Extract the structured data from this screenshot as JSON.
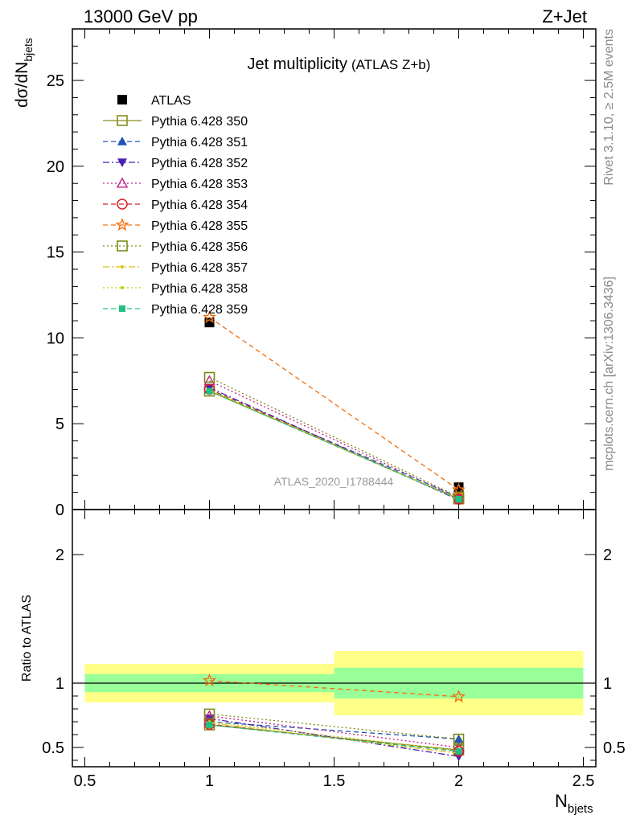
{
  "header": {
    "left": "13000 GeV pp",
    "right": "Z+Jet"
  },
  "side_text": {
    "rivet": "Rivet 3.1.10, ≥ 2.5M events",
    "mcplots": "mcplots.cern.ch [arXiv:1306.3436]"
  },
  "chart_data": [
    {
      "type": "scatter",
      "panel": "main",
      "title": "Jet multiplicity",
      "subtitle": "(ATLAS Z+b)",
      "analysis_label": "ATLAS_2020_I1788444",
      "xlabel": "N",
      "xlabel_sub": "bjets",
      "ylabel": "dσ/dN",
      "ylabel_sub": "bjets",
      "xlim": [
        0.45,
        2.55
      ],
      "ylim": [
        0,
        28
      ],
      "x_ticks": [
        0.5,
        1,
        1.5,
        2,
        2.5
      ],
      "x_tick_labels": [
        "0.5",
        "1",
        "1.5",
        "2",
        "2.5"
      ],
      "y_ticks": [
        0,
        5,
        10,
        15,
        20,
        25
      ],
      "y_tick_labels": [
        "0",
        "5",
        "10",
        "15",
        "20",
        "25"
      ],
      "legend_position": "top-left",
      "x": [
        1,
        2
      ],
      "series": [
        {
          "name": "ATLAS",
          "values": [
            10.9,
            1.3
          ],
          "color": "#000000",
          "marker": "square-filled",
          "line": "none"
        },
        {
          "name": "Pythia 6.428 350",
          "values": [
            6.9,
            0.62
          ],
          "color": "#8a8a1e",
          "marker": "square-open",
          "line": "solid"
        },
        {
          "name": "Pythia 6.428 351",
          "values": [
            7.0,
            0.72
          ],
          "color": "#1f55b4",
          "marker": "triangle-up-filled",
          "line": "dashed"
        },
        {
          "name": "Pythia 6.428 352",
          "values": [
            7.1,
            0.56
          ],
          "color": "#4a1eb4",
          "marker": "triangle-down-filled",
          "line": "dashdot"
        },
        {
          "name": "Pythia 6.428 353",
          "values": [
            7.5,
            0.65
          ],
          "color": "#c0208a",
          "marker": "triangle-up-open",
          "line": "dotted"
        },
        {
          "name": "Pythia 6.428 354",
          "values": [
            7.0,
            0.6
          ],
          "color": "#d42020",
          "marker": "circle-open",
          "line": "dashed"
        },
        {
          "name": "Pythia 6.428 355",
          "values": [
            11.2,
            1.15
          ],
          "color": "#f07010",
          "marker": "star-open",
          "line": "dashed"
        },
        {
          "name": "Pythia 6.428 356",
          "values": [
            7.7,
            0.73
          ],
          "color": "#7a8a10",
          "marker": "square-open",
          "line": "dotted"
        },
        {
          "name": "Pythia 6.428 357",
          "values": [
            6.95,
            0.6
          ],
          "color": "#d8c010",
          "marker": "dot",
          "line": "dashdot"
        },
        {
          "name": "Pythia 6.428 358",
          "values": [
            6.95,
            0.62
          ],
          "color": "#b8d010",
          "marker": "dot",
          "line": "dotted"
        },
        {
          "name": "Pythia 6.428 359",
          "values": [
            6.9,
            0.61
          ],
          "color": "#20c080",
          "marker": "square-filled-small",
          "line": "dashed"
        }
      ]
    },
    {
      "type": "scatter",
      "panel": "ratio",
      "ylabel": "Ratio to ATLAS",
      "xlim": [
        0.45,
        2.55
      ],
      "ylim": [
        0.35,
        2.35
      ],
      "y_ticks": [
        0.5,
        1,
        2
      ],
      "y_tick_labels": [
        "0.5",
        "1",
        "2"
      ],
      "reference_line": 1,
      "uncertainty_bands": [
        {
          "x_range": [
            0.5,
            1.5
          ],
          "inner": [
            0.93,
            1.07
          ],
          "outer": [
            0.85,
            1.15
          ]
        },
        {
          "x_range": [
            1.5,
            2.5
          ],
          "inner": [
            0.88,
            1.12
          ],
          "outer": [
            0.75,
            1.25
          ]
        }
      ],
      "band_colors": {
        "inner": "#99ff99",
        "outer": "#ffff88"
      },
      "x": [
        1,
        2
      ],
      "series": [
        {
          "name": "Pythia 6.428 350",
          "values": [
            0.675,
            0.48
          ]
        },
        {
          "name": "Pythia 6.428 351",
          "values": [
            0.7,
            0.565
          ]
        },
        {
          "name": "Pythia 6.428 352",
          "values": [
            0.725,
            0.43
          ]
        },
        {
          "name": "Pythia 6.428 353",
          "values": [
            0.745,
            0.5
          ]
        },
        {
          "name": "Pythia 6.428 354",
          "values": [
            0.68,
            0.47
          ]
        },
        {
          "name": "Pythia 6.428 355",
          "values": [
            1.02,
            0.895
          ]
        },
        {
          "name": "Pythia 6.428 356",
          "values": [
            0.76,
            0.565
          ]
        },
        {
          "name": "Pythia 6.428 357",
          "values": [
            0.69,
            0.455
          ]
        },
        {
          "name": "Pythia 6.428 358",
          "values": [
            0.7,
            0.475
          ]
        },
        {
          "name": "Pythia 6.428 359",
          "values": [
            0.675,
            0.47
          ]
        }
      ]
    }
  ]
}
